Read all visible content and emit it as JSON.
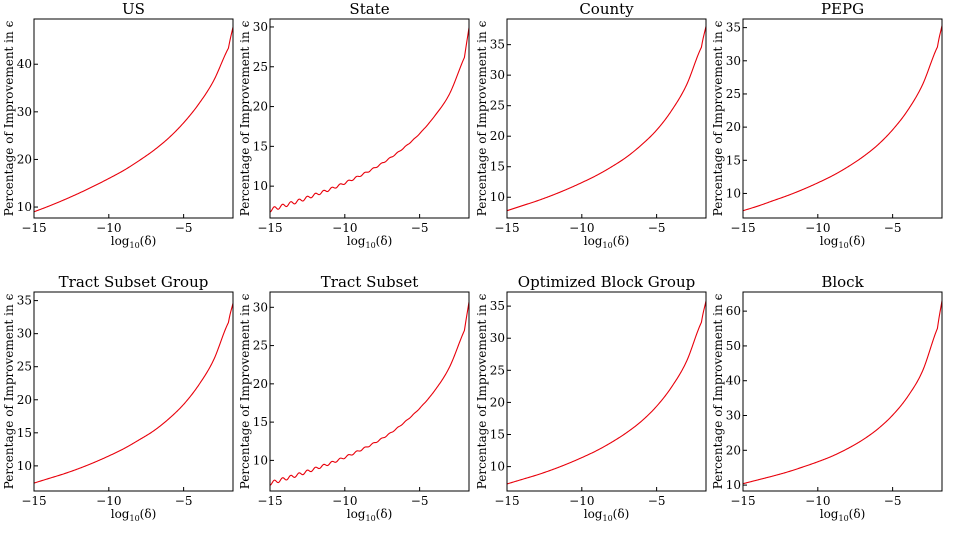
{
  "figure": {
    "curve_color": "#e8000b",
    "xlabel": "log",
    "xlabel_sub": "10",
    "xlabel_arg": "(δ)",
    "ylabel": "Percentage of Improvement in ϵ"
  },
  "chart_data": [
    {
      "type": "line",
      "title": "US",
      "xlabel": "log10(δ)",
      "ylabel": "Percentage of Improvement in ϵ",
      "xlim": [
        -15,
        -1.7
      ],
      "ylim": [
        7.7,
        49.5
      ],
      "xticks": [
        -15,
        -10,
        -5
      ],
      "yticks": [
        10,
        20,
        30,
        40
      ],
      "x": [
        -15,
        -14,
        -13,
        -12,
        -11,
        -10,
        -9,
        -8,
        -7,
        -6,
        -5,
        -4,
        -3,
        -2,
        -1.7
      ],
      "y": [
        9.0,
        10.2,
        11.5,
        12.9,
        14.4,
        16.0,
        17.7,
        19.7,
        21.9,
        24.5,
        27.7,
        31.6,
        36.5,
        43.4,
        47.8
      ],
      "wiggle": 0
    },
    {
      "type": "line",
      "title": "State",
      "xlabel": "log10(δ)",
      "ylabel": "Percentage of Improvement in ϵ",
      "xlim": [
        -15,
        -1.7
      ],
      "ylim": [
        6.0,
        31.0
      ],
      "xticks": [
        -15,
        -10,
        -5
      ],
      "yticks": [
        10,
        15,
        20,
        25,
        30
      ],
      "x": [
        -15,
        -14,
        -13,
        -12,
        -11,
        -10,
        -9,
        -8,
        -7,
        -6,
        -5,
        -4,
        -3,
        -2,
        -1.7
      ],
      "y": [
        7.0,
        7.6,
        8.2,
        8.9,
        9.6,
        10.4,
        11.3,
        12.3,
        13.5,
        14.9,
        16.6,
        18.8,
        21.6,
        26.2,
        29.9
      ],
      "wiggle": 0.25
    },
    {
      "type": "line",
      "title": "County",
      "xlabel": "log10(δ)",
      "ylabel": "Percentage of Improvement in ϵ",
      "xlim": [
        -15,
        -1.7
      ],
      "ylim": [
        6.6,
        39.2
      ],
      "xticks": [
        -15,
        -10,
        -5
      ],
      "yticks": [
        10,
        15,
        20,
        25,
        30,
        35
      ],
      "x": [
        -15,
        -14,
        -13,
        -12,
        -11,
        -10,
        -9,
        -8,
        -7,
        -6,
        -5,
        -4,
        -3,
        -2,
        -1.7
      ],
      "y": [
        7.8,
        8.6,
        9.4,
        10.3,
        11.3,
        12.4,
        13.6,
        15.0,
        16.6,
        18.6,
        21.0,
        24.2,
        28.4,
        34.6,
        38.0
      ],
      "wiggle": 0
    },
    {
      "type": "line",
      "title": "PEPG",
      "xlabel": "log10(δ)",
      "ylabel": "Percentage of Improvement in ϵ",
      "xlim": [
        -15,
        -1.7
      ],
      "ylim": [
        6.3,
        36.3
      ],
      "xticks": [
        -15,
        -10,
        -5
      ],
      "yticks": [
        10,
        15,
        20,
        25,
        30,
        35
      ],
      "x": [
        -15,
        -14,
        -13,
        -12,
        -11,
        -10,
        -9,
        -8,
        -7,
        -6,
        -5,
        -4,
        -3,
        -2,
        -1.7
      ],
      "y": [
        7.4,
        8.1,
        8.9,
        9.7,
        10.6,
        11.6,
        12.7,
        14.0,
        15.5,
        17.3,
        19.6,
        22.5,
        26.4,
        32.1,
        35.3
      ],
      "wiggle": 0
    },
    {
      "type": "line",
      "title": "Tract Subset Group",
      "xlabel": "log10(δ)",
      "ylabel": "Percentage of Improvement in ϵ",
      "xlim": [
        -15,
        -1.7
      ],
      "ylim": [
        6.2,
        36.3
      ],
      "xticks": [
        -15,
        -10,
        -5
      ],
      "yticks": [
        10,
        15,
        20,
        25,
        30,
        35
      ],
      "x": [
        -15,
        -14,
        -13,
        -12,
        -11,
        -10,
        -9,
        -8,
        -7,
        -6,
        -5,
        -4,
        -3,
        -2,
        -1.7
      ],
      "y": [
        7.4,
        8.1,
        8.8,
        9.6,
        10.5,
        11.5,
        12.6,
        13.9,
        15.3,
        17.1,
        19.3,
        22.2,
        26.0,
        31.7,
        34.6
      ],
      "wiggle": 0
    },
    {
      "type": "line",
      "title": "Tract Subset",
      "xlabel": "log10(δ)",
      "ylabel": "Percentage of Improvement in ϵ",
      "xlim": [
        -15,
        -1.7
      ],
      "ylim": [
        6.0,
        32.0
      ],
      "xticks": [
        -15,
        -10,
        -5
      ],
      "yticks": [
        10,
        15,
        20,
        25,
        30
      ],
      "x": [
        -15,
        -14,
        -13,
        -12,
        -11,
        -10,
        -9,
        -8,
        -7,
        -6,
        -5,
        -4,
        -3,
        -2,
        -1.7
      ],
      "y": [
        7.0,
        7.6,
        8.2,
        8.9,
        9.6,
        10.4,
        11.3,
        12.3,
        13.5,
        15.0,
        16.8,
        19.1,
        22.2,
        27.0,
        30.7
      ],
      "wiggle": 0.25
    },
    {
      "type": "line",
      "title": "Optimized Block Group",
      "xlabel": "log10(δ)",
      "ylabel": "Percentage of Improvement in ϵ",
      "xlim": [
        -15,
        -1.7
      ],
      "ylim": [
        6.2,
        37.2
      ],
      "xticks": [
        -15,
        -10,
        -5
      ],
      "yticks": [
        10,
        15,
        20,
        25,
        30,
        35
      ],
      "x": [
        -15,
        -14,
        -13,
        -12,
        -11,
        -10,
        -9,
        -8,
        -7,
        -6,
        -5,
        -4,
        -3,
        -2,
        -1.7
      ],
      "y": [
        7.3,
        8.0,
        8.7,
        9.5,
        10.4,
        11.4,
        12.5,
        13.8,
        15.3,
        17.1,
        19.4,
        22.4,
        26.4,
        32.5,
        35.8
      ],
      "wiggle": 0
    },
    {
      "type": "line",
      "title": "Block",
      "xlabel": "log10(δ)",
      "ylabel": "Percentage of Improvement in ϵ",
      "xlim": [
        -15,
        -1.7
      ],
      "ylim": [
        8.3,
        65.5
      ],
      "xticks": [
        -15,
        -10,
        -5
      ],
      "yticks": [
        10,
        20,
        30,
        40,
        50,
        60
      ],
      "x": [
        -15,
        -14,
        -13,
        -12,
        -11,
        -10,
        -9,
        -8,
        -7,
        -6,
        -5,
        -4,
        -3,
        -2,
        -1.7
      ],
      "y": [
        10.4,
        11.5,
        12.6,
        13.8,
        15.2,
        16.7,
        18.4,
        20.5,
        23.0,
        26.1,
        30.1,
        35.4,
        42.8,
        55.1,
        63.0
      ],
      "wiggle": 0
    }
  ]
}
